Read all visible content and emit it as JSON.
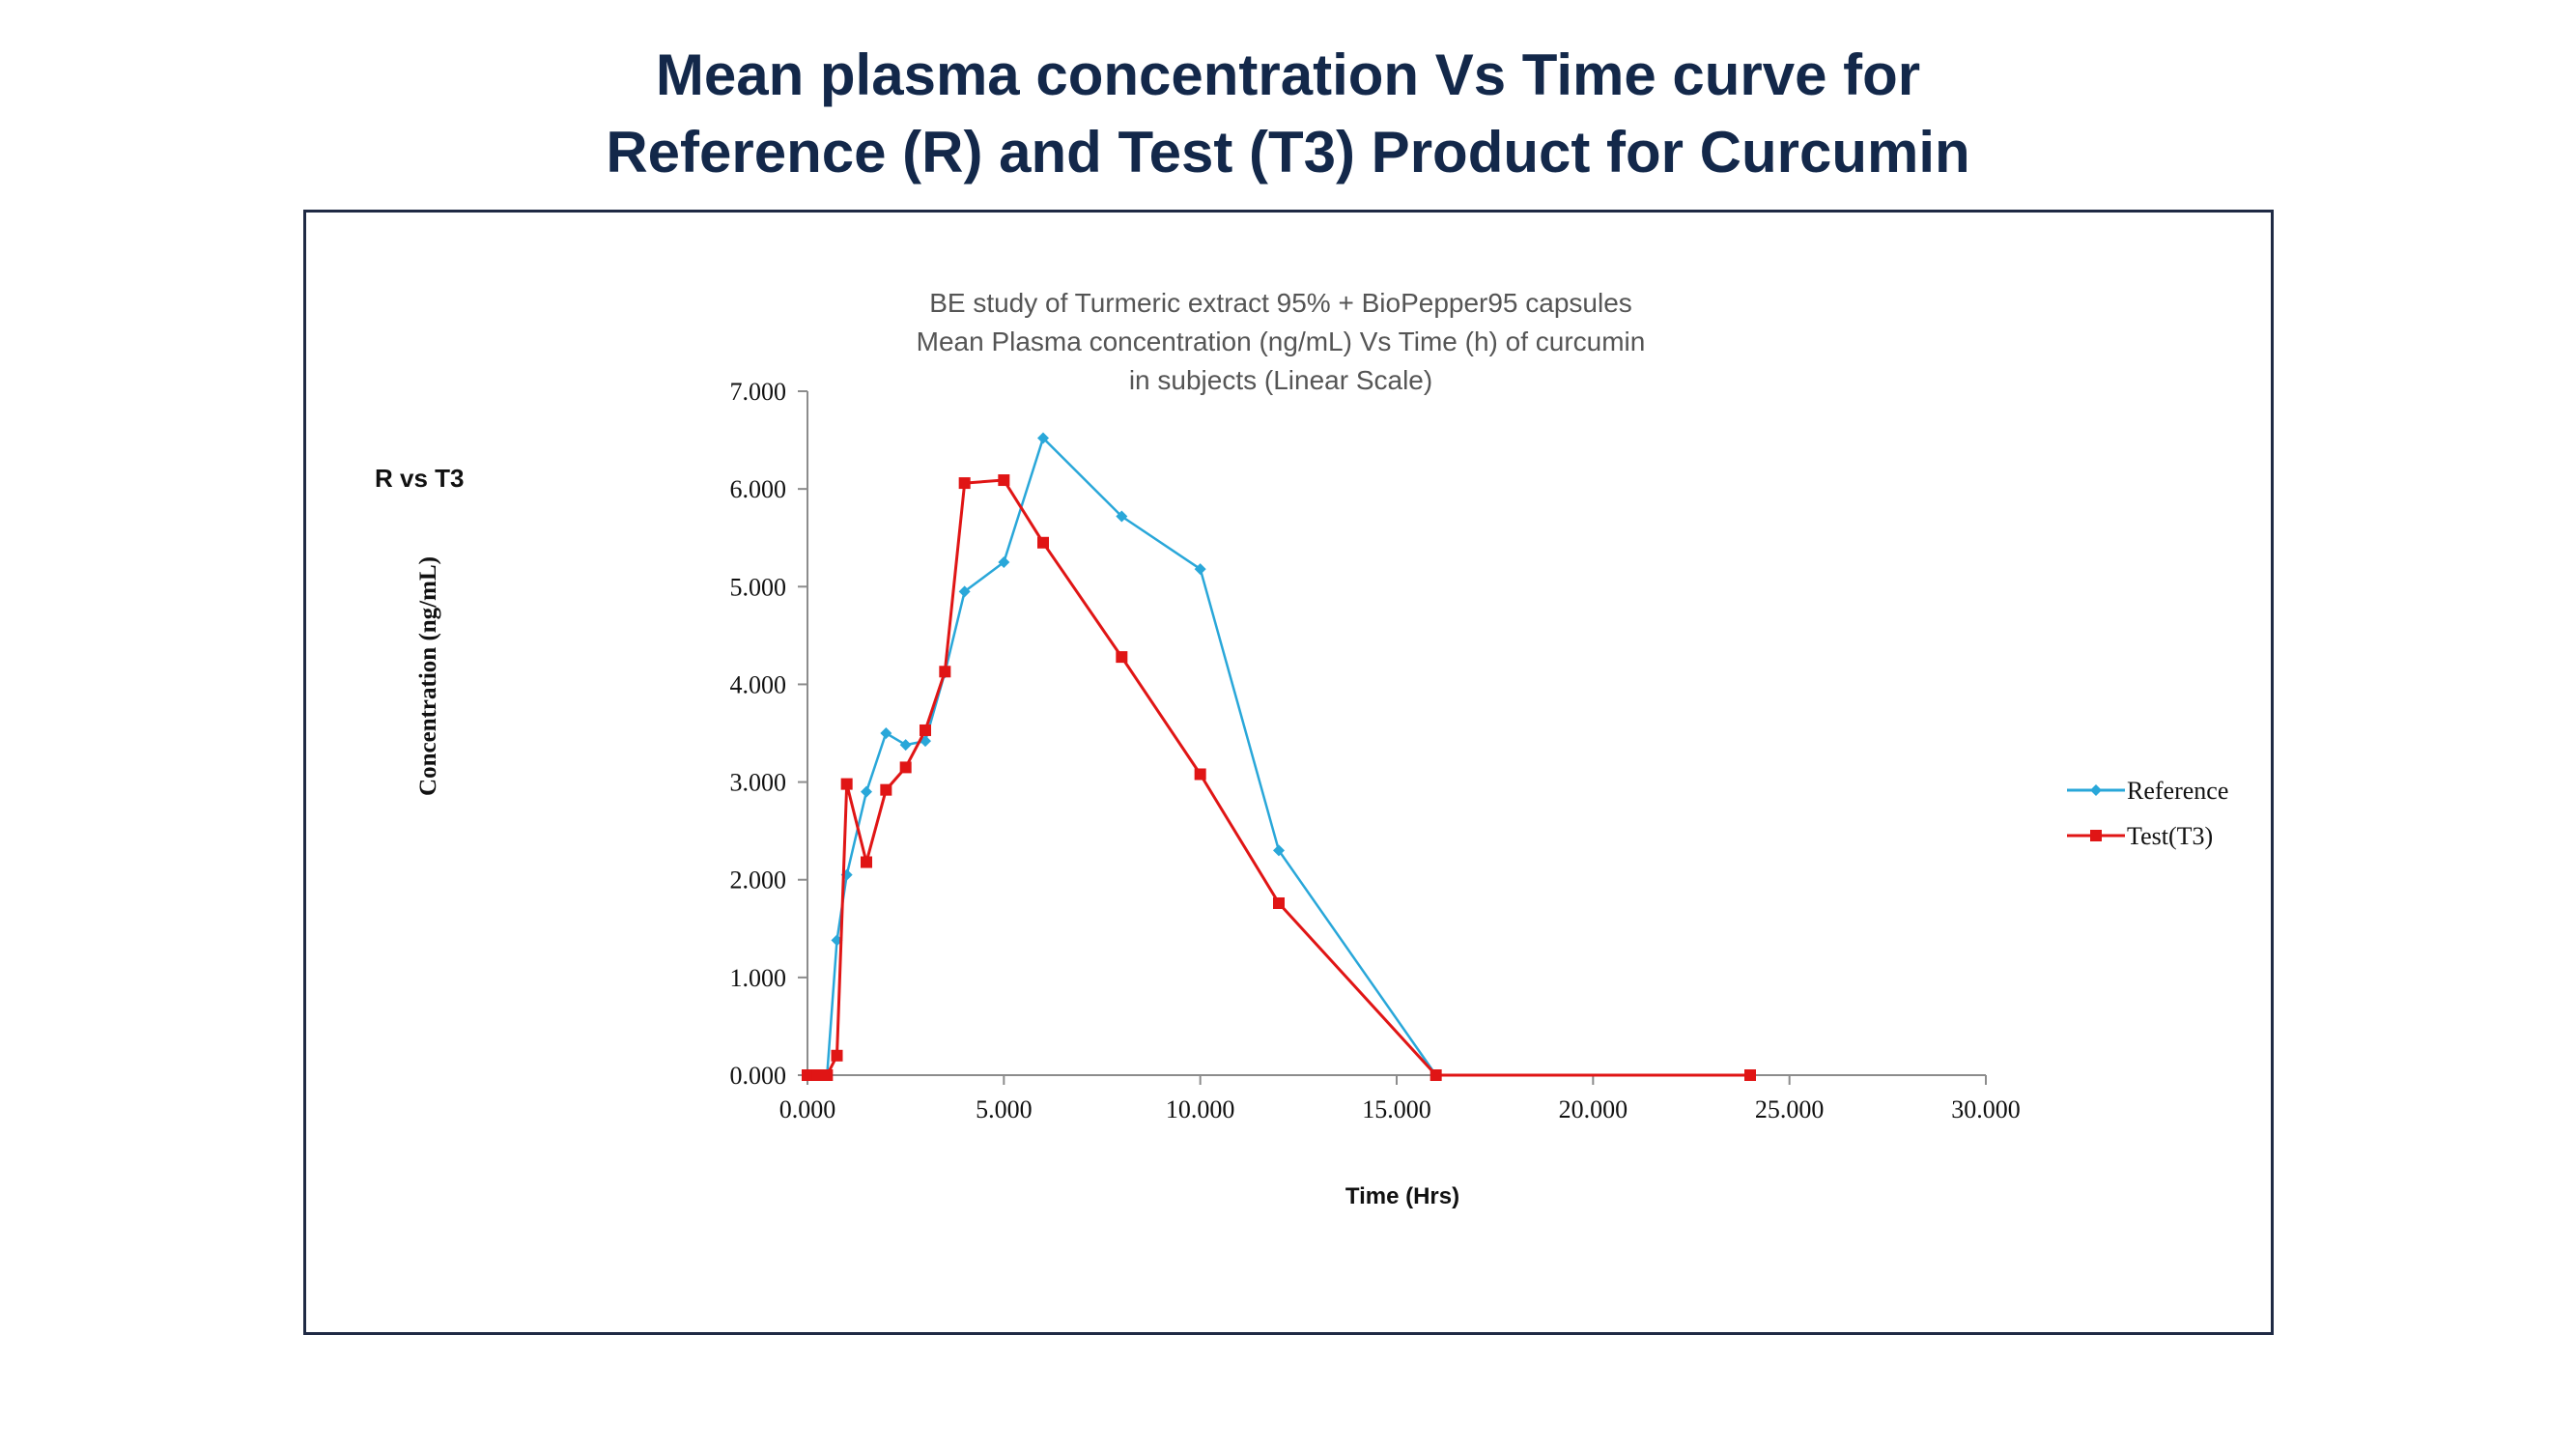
{
  "slide": {
    "title_line1": "Mean plasma concentration Vs Time curve for",
    "title_line2": "Reference (R) and Test (T3) Product for Curcumin"
  },
  "side_label": "R vs T3",
  "colors": {
    "title": "#13284a",
    "frame": "#1f2a44",
    "reference": "#29a7d9",
    "test": "#e01515"
  },
  "chart_data": {
    "type": "line",
    "title": [
      "BE study  of  Turmeric extract 95% + BioPepper95 capsules",
      "Mean Plasma concentration (ng/mL) Vs Time (h) of  curcumin",
      "in subjects (Linear Scale)"
    ],
    "xlabel": "Time (Hrs)",
    "ylabel": "Concentration (ng/mL)",
    "xlim": [
      0,
      30
    ],
    "ylim": [
      0,
      7
    ],
    "xticks": [
      0,
      5,
      10,
      15,
      20,
      25,
      30
    ],
    "yticks": [
      0,
      1,
      2,
      3,
      4,
      5,
      6,
      7
    ],
    "xtick_labels": [
      "0.000",
      "5.000",
      "10.000",
      "15.000",
      "20.000",
      "25.000",
      "30.000"
    ],
    "ytick_labels": [
      "0.000",
      "1.000",
      "2.000",
      "3.000",
      "4.000",
      "5.000",
      "6.000",
      "7.000"
    ],
    "grid": false,
    "legend_position": "right",
    "series": [
      {
        "name": "Reference",
        "color": "#29a7d9",
        "marker": "diamond",
        "x": [
          0,
          0.25,
          0.5,
          0.75,
          1,
          1.5,
          2,
          2.5,
          3,
          3.5,
          4,
          5,
          6,
          8,
          10,
          12,
          16,
          24
        ],
        "y": [
          0,
          0,
          0,
          1.38,
          2.05,
          2.9,
          3.5,
          3.38,
          3.42,
          4.12,
          4.95,
          5.25,
          6.52,
          5.72,
          5.18,
          2.3,
          0,
          0
        ]
      },
      {
        "name": "Test(T3)",
        "color": "#e01515",
        "marker": "square",
        "x": [
          0,
          0.25,
          0.5,
          0.75,
          1,
          1.5,
          2,
          2.5,
          3,
          3.5,
          4,
          5,
          6,
          8,
          10,
          12,
          16,
          24
        ],
        "y": [
          0,
          0,
          0,
          0.2,
          2.98,
          2.18,
          2.92,
          3.15,
          3.53,
          4.13,
          6.06,
          6.09,
          5.45,
          4.28,
          3.08,
          1.76,
          0,
          0
        ]
      }
    ]
  }
}
